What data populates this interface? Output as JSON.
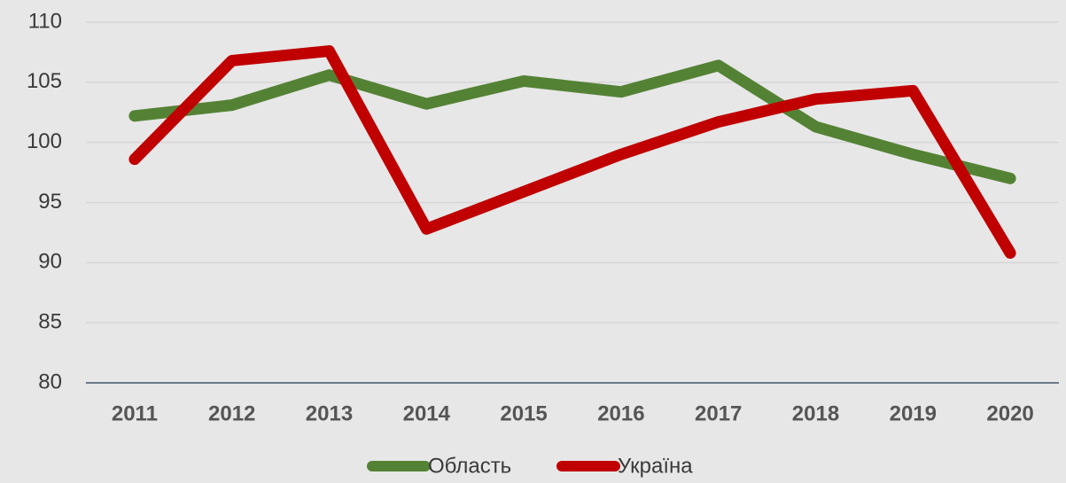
{
  "chart_data": {
    "type": "line",
    "categories": [
      "2011",
      "2012",
      "2013",
      "2014",
      "2015",
      "2016",
      "2017",
      "2018",
      "2019",
      "2020"
    ],
    "series": [
      {
        "name": "Область",
        "color": "#548235",
        "values": [
          102.2,
          103.1,
          105.6,
          103.2,
          105.1,
          104.2,
          106.4,
          101.3,
          99.0,
          97.0
        ]
      },
      {
        "name": "Україна",
        "color": "#c00000",
        "values": [
          98.6,
          106.8,
          107.6,
          92.8,
          95.9,
          99.0,
          101.7,
          103.6,
          104.3,
          90.8
        ]
      }
    ],
    "ylim": [
      80,
      110
    ],
    "yticks": [
      80,
      85,
      90,
      95,
      100,
      105,
      110
    ],
    "grid": true,
    "legend": "bottom"
  }
}
